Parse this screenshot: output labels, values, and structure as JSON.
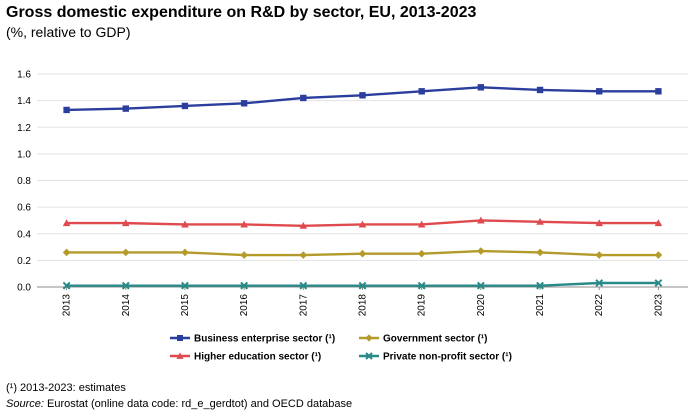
{
  "title": "Gross domestic expenditure on R&D by sector, EU, 2013-2023",
  "subtitle": "(%, relative to GDP)",
  "footnote": "(¹) 2013-2023: estimates",
  "source_label": "Source:",
  "source_text": "Eurostat (online data code: rd_e_gerdtot) and OECD database",
  "chart_data": {
    "type": "line",
    "title": "Gross domestic expenditure on R&D by sector, EU, 2013-2023",
    "ylabel": "%, relative to GDP",
    "xlabel": "",
    "ylim": [
      0,
      1.6
    ],
    "yticks": [
      "0.0",
      "0.2",
      "0.4",
      "0.6",
      "0.8",
      "1.0",
      "1.2",
      "1.4",
      "1.6"
    ],
    "categories": [
      "2013",
      "2014",
      "2015",
      "2016",
      "2017",
      "2018",
      "2019",
      "2020",
      "2021",
      "2022",
      "2023"
    ],
    "grid": true,
    "legend_position": "bottom",
    "series": [
      {
        "name": "Business enterprise sector (¹)",
        "color": "#2a3e9e",
        "marker": "square",
        "values": [
          1.33,
          1.34,
          1.36,
          1.38,
          1.42,
          1.44,
          1.47,
          1.5,
          1.48,
          1.47,
          1.47
        ]
      },
      {
        "name": "Government sector (¹)",
        "color": "#b39a2a",
        "marker": "diamond",
        "values": [
          0.26,
          0.26,
          0.26,
          0.24,
          0.24,
          0.25,
          0.25,
          0.27,
          0.26,
          0.24,
          0.24
        ]
      },
      {
        "name": "Higher education sector (¹)",
        "color": "#df4a4e",
        "marker": "triangle",
        "values": [
          0.48,
          0.48,
          0.47,
          0.47,
          0.46,
          0.47,
          0.47,
          0.5,
          0.49,
          0.48,
          0.48
        ]
      },
      {
        "name": "Private non-profit sector (¹)",
        "color": "#2a8a87",
        "marker": "x",
        "values": [
          0.01,
          0.01,
          0.01,
          0.01,
          0.01,
          0.01,
          0.01,
          0.01,
          0.01,
          0.03,
          0.03
        ]
      }
    ]
  }
}
